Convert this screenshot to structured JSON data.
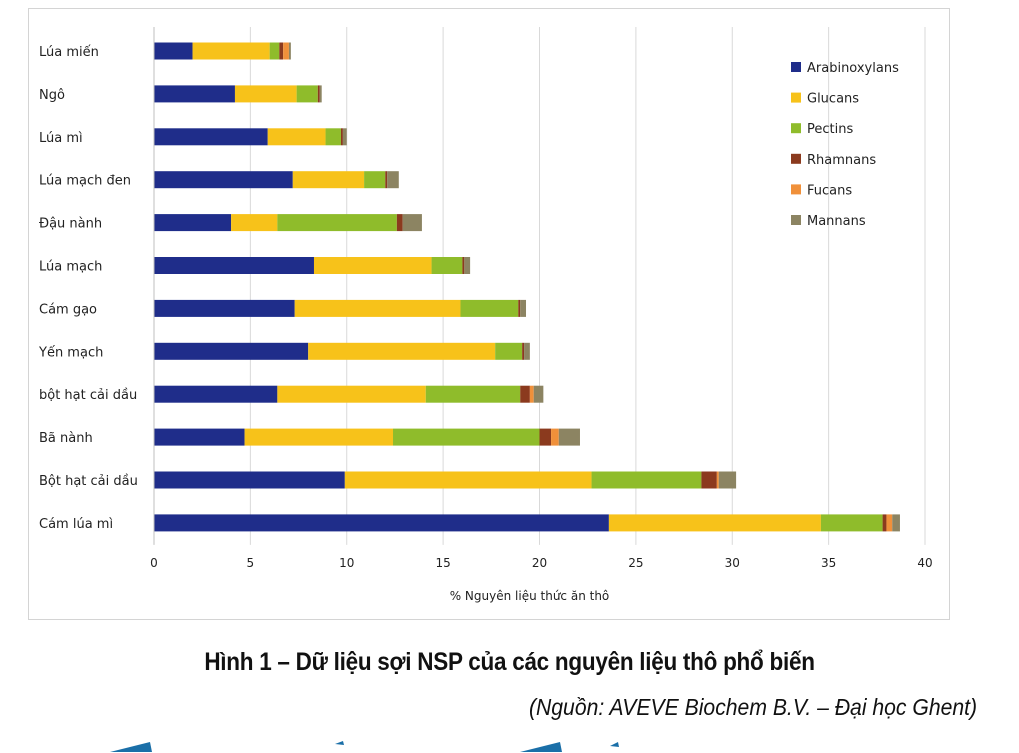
{
  "chart_data": {
    "type": "bar",
    "orientation": "horizontal",
    "stacked": true,
    "categories": [
      "Lúa miến",
      "Ngô",
      "Lúa mì",
      "Lúa mạch đen",
      "Đậu nành",
      "Lúa mạch",
      "Cám gạo",
      "Yến mạch",
      "bột hạt cải dầu",
      "Bã nành",
      "Bột hạt cải dầu",
      "Cám lúa mì"
    ],
    "series": [
      {
        "name": "Arabinoxylans",
        "color": "#1f2d8a",
        "values": [
          2.0,
          4.2,
          5.9,
          7.2,
          4.0,
          8.3,
          7.3,
          8.0,
          6.4,
          4.7,
          9.9,
          23.6
        ]
      },
      {
        "name": "Glucans",
        "color": "#f7c21a",
        "values": [
          4.0,
          3.2,
          3.0,
          3.7,
          2.4,
          6.1,
          8.6,
          9.7,
          7.7,
          7.7,
          12.8,
          11.0
        ]
      },
      {
        "name": "Pectins",
        "color": "#8fbc2b",
        "values": [
          0.5,
          1.1,
          0.8,
          1.1,
          6.2,
          1.6,
          3.0,
          1.4,
          4.9,
          7.6,
          5.7,
          3.2
        ]
      },
      {
        "name": "Rhamnans",
        "color": "#8b3a1e",
        "values": [
          0.2,
          0.1,
          0.1,
          0.1,
          0.3,
          0.1,
          0.1,
          0.1,
          0.5,
          0.6,
          0.8,
          0.2
        ]
      },
      {
        "name": "Fucans",
        "color": "#f0903a",
        "values": [
          0.3,
          0.0,
          0.0,
          0.0,
          0.0,
          0.0,
          0.0,
          0.0,
          0.2,
          0.4,
          0.1,
          0.3
        ]
      },
      {
        "name": "Mannans",
        "color": "#8c8462",
        "values": [
          0.1,
          0.1,
          0.2,
          0.6,
          1.0,
          0.3,
          0.3,
          0.3,
          0.5,
          1.1,
          0.9,
          0.4
        ]
      }
    ],
    "xlim": [
      0,
      40
    ],
    "xticks": [
      0,
      5,
      10,
      15,
      20,
      25,
      30,
      35,
      40
    ],
    "xlabel": "% Nguyên liệu thức ăn thô",
    "ylabel": "",
    "grid": "vertical",
    "legend_position": "right"
  },
  "caption": {
    "title": "Hình 1 – Dữ liệu sợi NSP của các nguyên liệu thô phổ biến",
    "source": "(Nguồn: AVEVE Biochem B.V. – Đại học Ghent)"
  }
}
